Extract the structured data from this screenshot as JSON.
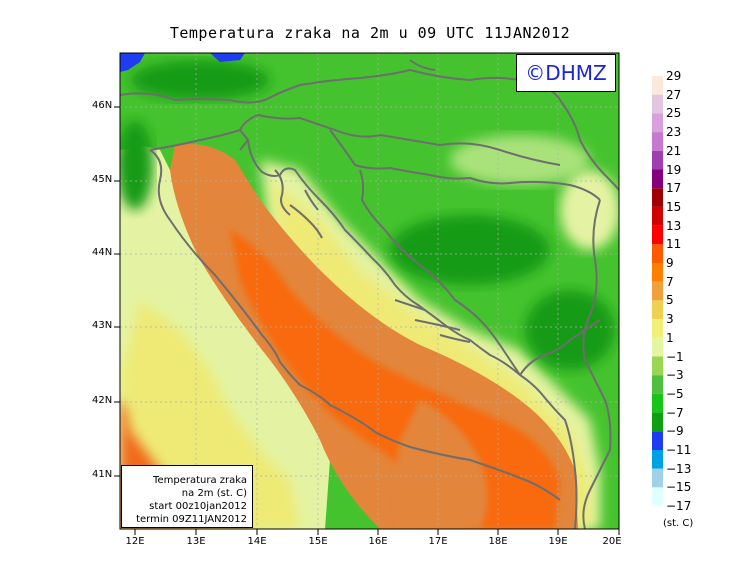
{
  "title": "Temperatura zraka na 2m u 09 UTC 11JAN2012",
  "logo": "©DHMZ",
  "info": {
    "line1": "Temperatura zraka",
    "line2": "na 2m (st. C)",
    "line3": "start 00z10jan2012",
    "line4": "termin 09Z11JAN2012"
  },
  "lat_ticks": [
    "46N",
    "45N",
    "44N",
    "43N",
    "42N",
    "41N"
  ],
  "lon_ticks": [
    "12E",
    "13E",
    "14E",
    "15E",
    "16E",
    "17E",
    "18E",
    "19E",
    "20E"
  ],
  "legend": {
    "unit": "(st. C)",
    "labels": [
      "29",
      "27",
      "25",
      "23",
      "21",
      "19",
      "17",
      "15",
      "13",
      "11",
      "9",
      "7",
      "5",
      "3",
      "1",
      "−1",
      "−3",
      "−5",
      "−7",
      "−9",
      "−11",
      "−13",
      "−15",
      "−17"
    ],
    "colors": [
      "#fbeadb",
      "#e0c6e0",
      "#d8a1dd",
      "#c779d0",
      "#a040b0",
      "#86007c",
      "#a00000",
      "#d20000",
      "#ff0000",
      "#ff5a00",
      "#ff7f00",
      "#f0a03c",
      "#f0d050",
      "#f0f078",
      "#e6f5a0",
      "#98d653",
      "#50c040",
      "#18c418",
      "#0fa00f",
      "#1e3cf0",
      "#00a0e6",
      "#a0d2e6",
      "#e0ffff"
    ]
  },
  "colors": {
    "sea_warm": "#e3853a",
    "sea_hot": "#f86a10",
    "land_green": "#45c32e",
    "land_dark": "#149b14",
    "coast_yellow": "#eeea74",
    "coast_pale": "#e4f3a3",
    "border": "#707070"
  }
}
